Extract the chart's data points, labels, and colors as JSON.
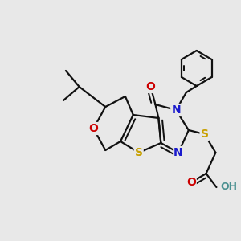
{
  "bg_color": "#e8e8e8",
  "atom_colors": {
    "S": "#c8a000",
    "O": "#cc0000",
    "N": "#1a1acc",
    "C": "#111111",
    "H": "#4a9090"
  },
  "bond_color": "#111111",
  "bond_width": 1.6,
  "figsize": [
    3.0,
    3.0
  ],
  "dpi": 100
}
